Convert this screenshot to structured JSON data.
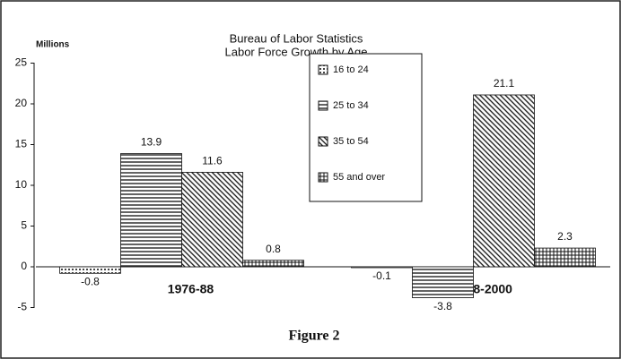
{
  "chart_data": {
    "type": "bar",
    "title": "Bureau of Labor Statistics",
    "subtitle": "Labor Force Growth by Age",
    "y_label": "Millions",
    "caption": "Figure 2",
    "categories": [
      "1976-88",
      "1988-2000"
    ],
    "series": [
      {
        "name": "16 to 24",
        "values": [
          -0.8,
          -0.1
        ]
      },
      {
        "name": "25 to 34",
        "values": [
          13.9,
          -3.8
        ]
      },
      {
        "name": "35 to 54",
        "values": [
          11.6,
          21.1
        ]
      },
      {
        "name": "55 and over",
        "values": [
          0.8,
          2.3
        ]
      }
    ],
    "ylim": [
      -5,
      25
    ],
    "yticks": [
      -5,
      0,
      5,
      10,
      15,
      20,
      25
    ],
    "legend": "top-center"
  }
}
